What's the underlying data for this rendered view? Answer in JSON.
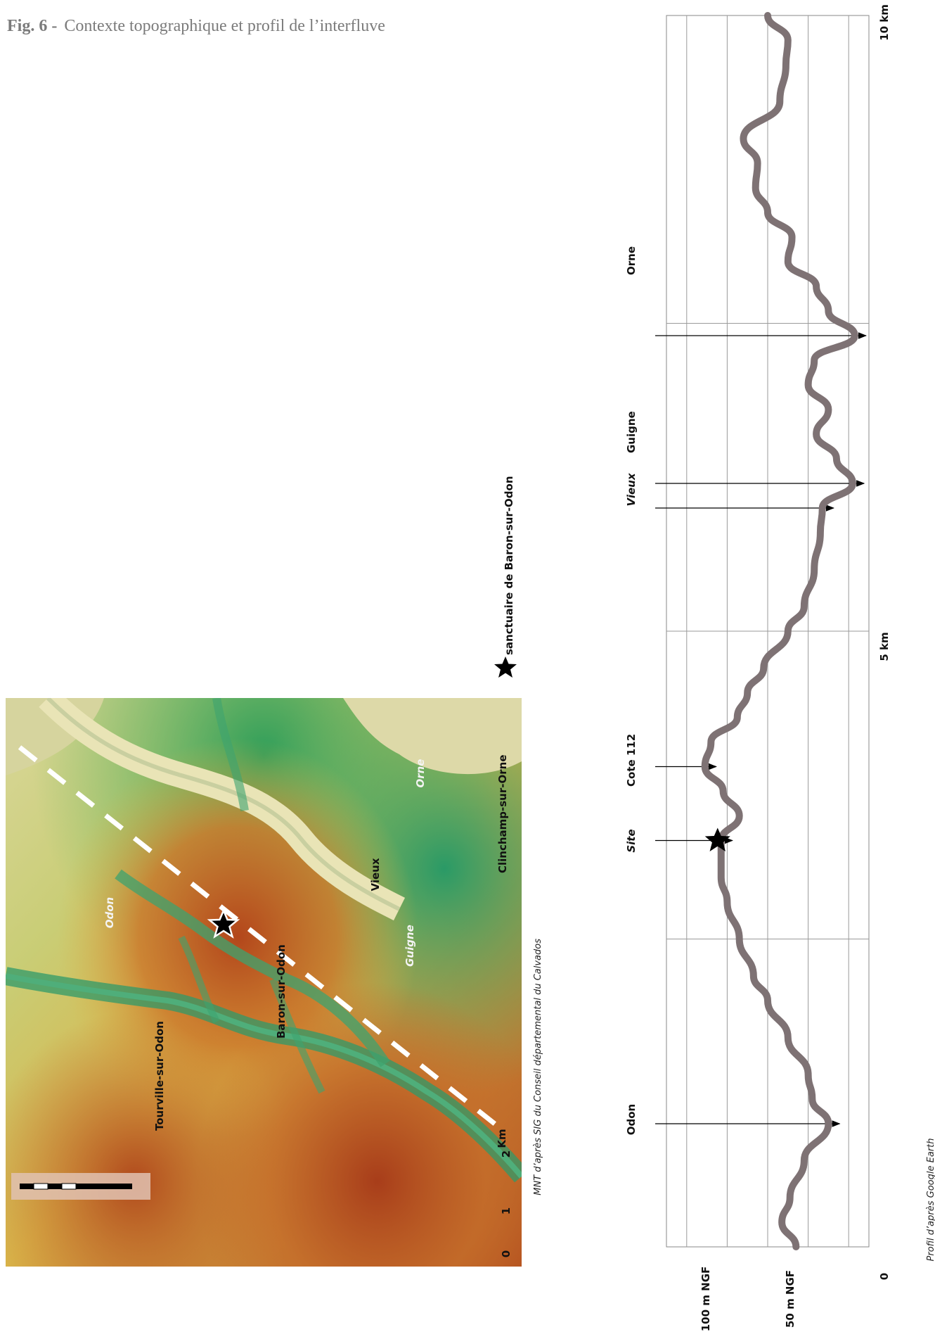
{
  "figure": {
    "number": "Fig. 6 -",
    "title": "Contexte topographique et profil de l’interfluve"
  },
  "map": {
    "labels": {
      "odon_river": "Odon",
      "tourville": "Tourville-sur-Odon",
      "baron": "Baron-sur-Odon",
      "vieux": "Vieux",
      "guigne": "Guigne",
      "orne": "Orne",
      "clinchamp": "Clinchamp-sur-Orne"
    },
    "scale": {
      "unit": "Km",
      "ticks": [
        "0",
        "1",
        "2"
      ]
    },
    "credit": "MNT d’après SIG du Conseil départemental du Calvados"
  },
  "legend": {
    "symbol": "star-icon",
    "label": "sanctuaire de Baron-sur-Odon"
  },
  "profile": {
    "x_labels": [
      "0",
      "5 km",
      "10 km"
    ],
    "y_labels": [
      "100 m NGF",
      "50 m NGF"
    ],
    "annotations": {
      "odon": "Odon",
      "site": "Site",
      "cote": "Cote 112",
      "vieux": "Vieux",
      "guigne": "Guigne",
      "orne": "Orne"
    },
    "credit": "Profil d’après Google Earth",
    "line_color": "#7e7274"
  },
  "chart_data": {
    "type": "line",
    "xlabel": "",
    "ylabel": "",
    "x_ticks": [
      "0",
      "5 km",
      "10 km"
    ],
    "y_ticks": [
      "50 m NGF",
      "100 m NGF"
    ],
    "xlim": [
      0,
      10
    ],
    "series": [
      {
        "x": [
          0,
          0.2,
          0.4,
          0.7,
          1.0,
          1.2,
          1.4,
          1.7,
          2.0,
          2.2,
          2.5,
          2.8,
          3.0,
          3.3,
          3.5,
          3.7,
          3.9,
          4.1,
          4.3,
          4.5,
          4.7,
          5.0,
          5.2,
          5.5,
          5.8,
          6.0,
          6.2,
          6.4,
          6.6,
          6.8,
          7.0,
          7.2,
          7.4,
          7.6,
          7.8,
          8.0,
          8.2,
          8.4,
          8.6,
          8.8,
          9.0,
          9.3,
          9.6,
          9.8,
          10.0
        ],
        "y": [
          66,
          73,
          69,
          62,
          50,
          58,
          60,
          70,
          80,
          87,
          94,
          100,
          103,
          103,
          94,
          102,
          111,
          108,
          95,
          90,
          82,
          70,
          62,
          57,
          54,
          53,
          38,
          46,
          56,
          50,
          60,
          57,
          37,
          50,
          56,
          70,
          68,
          80,
          86,
          85,
          92,
          74,
          71,
          70,
          80
        ]
      }
    ],
    "annotations": [
      {
        "label": "Odon",
        "x": 1.0
      },
      {
        "label": "Site",
        "x": 3.3
      },
      {
        "label": "Cote 112",
        "x": 3.9
      },
      {
        "label": "Vieux",
        "x": 6.0
      },
      {
        "label": "Guigne",
        "x": 6.2
      },
      {
        "label": "Orne",
        "x": 7.4
      }
    ],
    "grid": true
  }
}
